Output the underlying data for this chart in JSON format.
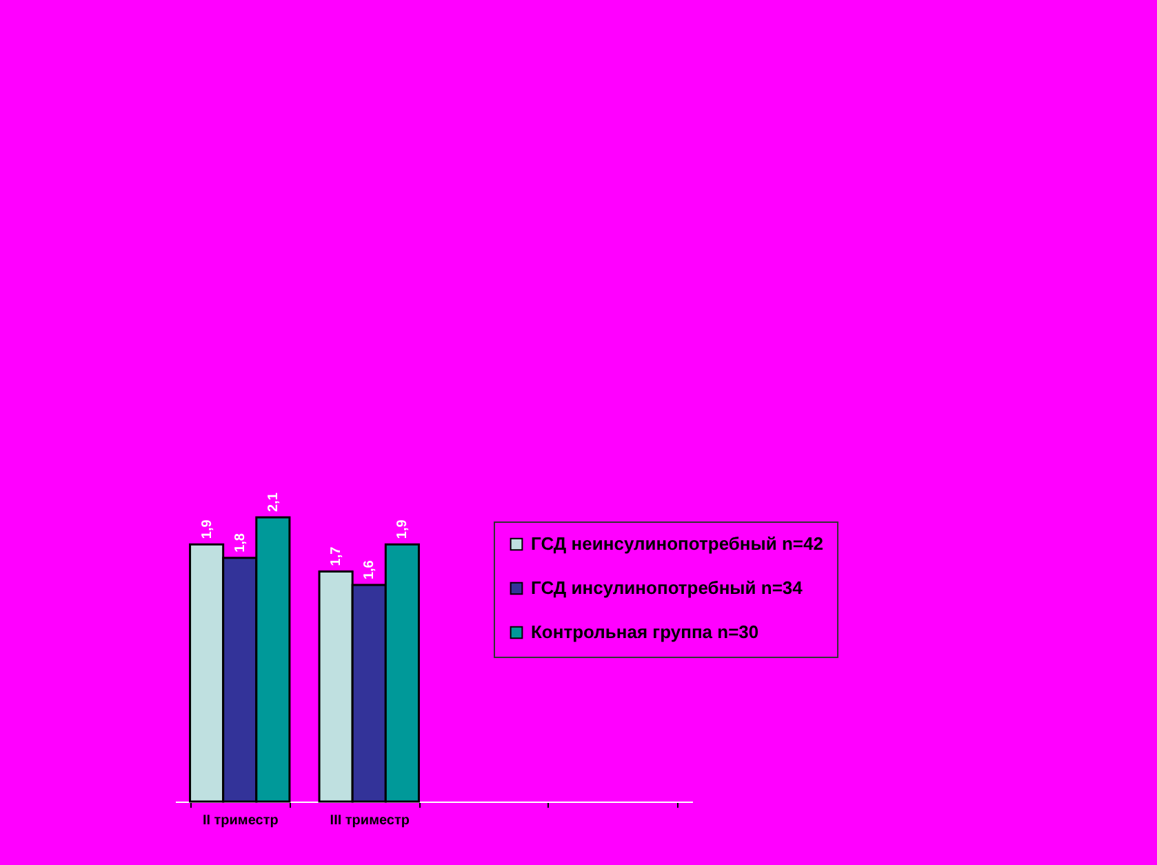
{
  "chart_data": {
    "type": "bar",
    "categories": [
      "II триместр",
      "III триместр",
      null,
      null
    ],
    "series": [
      {
        "name": "ГСД неинсулинопотребный n=42",
        "color": "#bfe0e0",
        "values": [
          1.9,
          1.7,
          null,
          null
        ],
        "value_labels": [
          "1,9",
          "1,7",
          null,
          null
        ]
      },
      {
        "name": "ГСД инсулинопотребный n=34",
        "color": "#333399",
        "values": [
          1.8,
          1.6,
          null,
          null
        ],
        "value_labels": [
          "1,8",
          "1,6",
          null,
          null
        ]
      },
      {
        "name": "Контрольная группа n=30",
        "color": "#009999",
        "values": [
          2.1,
          1.9,
          null,
          null
        ],
        "value_labels": [
          "2,1",
          "1,9",
          null,
          null
        ]
      }
    ],
    "tick_labels": "x",
    "legend": "right"
  }
}
